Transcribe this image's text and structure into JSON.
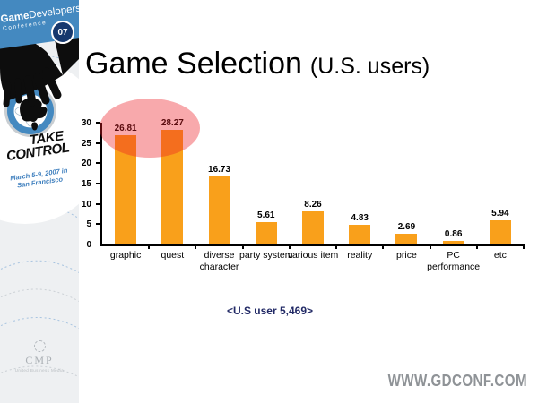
{
  "slide": {
    "title": "Game Selection",
    "title_suffix": "(U.S. users)",
    "caption": "<U.S user 5,469>",
    "watermark": "WWW.GDCONF.COM"
  },
  "sidebar": {
    "logo_bold": "Game",
    "logo_rest": "Developers",
    "logo_line2": "Conference",
    "logo_badge": "07",
    "tagline_line1": "TAKE",
    "tagline_line2": "CONTROL",
    "date_line1": "March 5-9, 2007 in",
    "date_line2": "San Francisco",
    "footer_logo": "CMP",
    "footer_sub": "United Business Media"
  },
  "chart_data": {
    "type": "bar",
    "title": "",
    "xlabel": "",
    "ylabel": "",
    "categories": [
      "graphic",
      "quest",
      "diverse\ncharacter",
      "party system",
      "various item",
      "reality",
      "price",
      "PC\nperformance",
      "etc"
    ],
    "values": [
      26.81,
      28.27,
      16.73,
      5.61,
      8.26,
      4.83,
      2.69,
      0.86,
      5.94
    ],
    "ylim": [
      0,
      30
    ],
    "yticks": [
      0,
      5,
      10,
      15,
      20,
      25,
      30
    ],
    "grid": false,
    "legend": false,
    "bar_color": "#f9a01b",
    "highlight": {
      "shape": "ellipse",
      "over_categories": [
        "graphic",
        "quest"
      ],
      "color": "rgba(237,28,36,0.38)"
    }
  }
}
